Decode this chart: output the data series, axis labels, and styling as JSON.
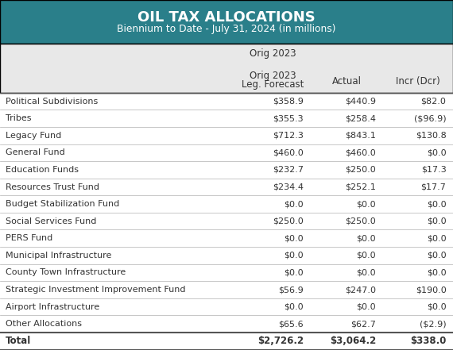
{
  "title": "OIL TAX ALLOCATIONS",
  "subtitle": "Biennium to Date - July 31, 2024 (in millions)",
  "header_bg": "#2a7f8a",
  "header_text_color": "#ffffff",
  "subheader_bg": "#e8e8e8",
  "col_headers": [
    "Orig 2023\nLeg. Forecast",
    "Actual",
    "Incr (Dcr)"
  ],
  "rows": [
    [
      "Political Subdivisions",
      "$358.9",
      "$440.9",
      "$82.0"
    ],
    [
      "Tribes",
      "$355.3",
      "$258.4",
      "($96.9)"
    ],
    [
      "Legacy Fund",
      "$712.3",
      "$843.1",
      "$130.8"
    ],
    [
      "General Fund",
      "$460.0",
      "$460.0",
      "$0.0"
    ],
    [
      "Education Funds",
      "$232.7",
      "$250.0",
      "$17.3"
    ],
    [
      "Resources Trust Fund",
      "$234.4",
      "$252.1",
      "$17.7"
    ],
    [
      "Budget Stabilization Fund",
      "$0.0",
      "$0.0",
      "$0.0"
    ],
    [
      "Social Services Fund",
      "$250.0",
      "$250.0",
      "$0.0"
    ],
    [
      "PERS Fund",
      "$0.0",
      "$0.0",
      "$0.0"
    ],
    [
      "Municipal Infrastructure",
      "$0.0",
      "$0.0",
      "$0.0"
    ],
    [
      "County Town Infrastructure",
      "$0.0",
      "$0.0",
      "$0.0"
    ],
    [
      "Strategic Investment Improvement Fund",
      "$56.9",
      "$247.0",
      "$190.0"
    ],
    [
      "Airport Infrastructure",
      "$0.0",
      "$0.0",
      "$0.0"
    ],
    [
      "Other Allocations",
      "$65.6",
      "$62.7",
      "($2.9)"
    ]
  ],
  "total_row": [
    "Total",
    "$2,726.2",
    "$3,064.2",
    "$338.0"
  ],
  "divider_color": "#b0b0b0",
  "thick_divider_color": "#555555",
  "text_color": "#333333",
  "total_text_color": "#333333"
}
